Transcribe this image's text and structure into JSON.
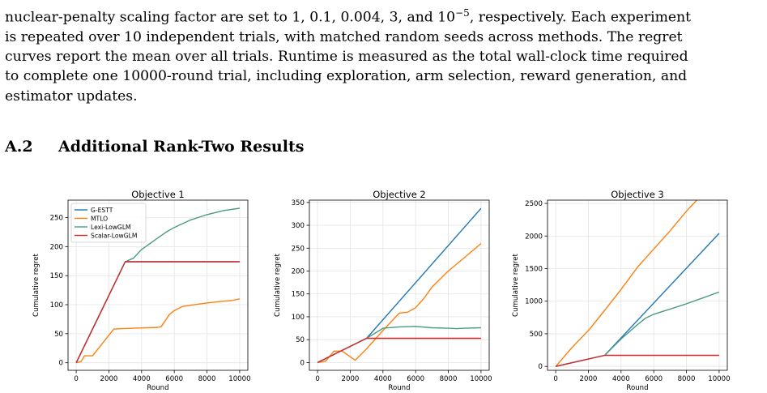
{
  "paragraph": {
    "lines": [
      "nuclear-penalty scaling factor are set to 1, 0.1, 0.004, 3, and 10",
      "is repeated over 10 independent trials, with matched random seeds across methods.  The regret",
      "curves report the mean over all trials. Runtime is measured as the total wall-clock time required",
      "to complete one 10000-round trial, including exploration, arm selection, reward generation, and",
      "estimator updates."
    ],
    "line1_superscript": "−5",
    "line1_suffix": ", respectively. Each experiment"
  },
  "section": {
    "number": "A.2",
    "title": "Additional Rank-Two Results"
  },
  "colors": {
    "G-ESTT": "#1f77b4",
    "MTLO": "#ff7f0e",
    "Lexi-LowGLM": "#4a9a86",
    "Scalar-LowGLM": "#d62728"
  },
  "chart_data": [
    {
      "type": "line",
      "title": "Objective 1",
      "xlabel": "Round",
      "ylabel": "Cumulative regret",
      "xlim": [
        -500,
        10500
      ],
      "ylim": [
        -13,
        280
      ],
      "xticks": [
        0,
        2000,
        4000,
        6000,
        8000,
        10000
      ],
      "yticks": [
        0,
        50,
        100,
        150,
        200,
        250
      ],
      "grid": true,
      "legend": "top-left",
      "series": [
        {
          "name": "G-ESTT",
          "x": [
            0,
            3000,
            10000
          ],
          "y": [
            0,
            174,
            174
          ]
        },
        {
          "name": "MTLO",
          "x": [
            0,
            300,
            500,
            1000,
            2300,
            3000,
            4000,
            5000,
            5200,
            5700,
            6000,
            6500,
            7000,
            8000,
            9000,
            9500,
            10000
          ],
          "y": [
            0,
            2,
            12,
            12,
            58,
            59,
            60,
            61,
            62,
            83,
            90,
            97,
            99,
            103,
            106,
            107,
            110
          ]
        },
        {
          "name": "Lexi-LowGLM",
          "x": [
            0,
            3000,
            3500,
            4000,
            5000,
            5500,
            6000,
            7000,
            8000,
            9000,
            10000
          ],
          "y": [
            0,
            174,
            180,
            195,
            215,
            225,
            233,
            246,
            255,
            262,
            266
          ]
        },
        {
          "name": "Scalar-LowGLM",
          "x": [
            0,
            3000,
            10000
          ],
          "y": [
            0,
            174,
            174
          ]
        }
      ]
    },
    {
      "type": "line",
      "title": "Objective 2",
      "xlabel": "Round",
      "ylabel": "Cumulative regret",
      "xlim": [
        -500,
        10500
      ],
      "ylim": [
        -17,
        355
      ],
      "xticks": [
        0,
        2000,
        4000,
        6000,
        8000,
        10000
      ],
      "yticks": [
        0,
        50,
        100,
        150,
        200,
        250,
        300,
        350
      ],
      "grid": true,
      "series": [
        {
          "name": "G-ESTT",
          "x": [
            0,
            3000,
            10000
          ],
          "y": [
            0,
            53,
            337
          ]
        },
        {
          "name": "MTLO",
          "x": [
            0,
            500,
            1000,
            1500,
            2300,
            3000,
            4000,
            5000,
            5500,
            6000,
            6500,
            7000,
            8000,
            9000,
            10000
          ],
          "y": [
            0,
            3,
            25,
            25,
            5,
            30,
            70,
            108,
            110,
            120,
            140,
            165,
            200,
            230,
            260
          ]
        },
        {
          "name": "Lexi-LowGLM",
          "x": [
            0,
            3000,
            4000,
            5000,
            6000,
            7000,
            8000,
            8500,
            9000,
            10000
          ],
          "y": [
            0,
            53,
            75,
            78,
            79,
            76,
            75,
            74,
            75,
            76
          ]
        },
        {
          "name": "Scalar-LowGLM",
          "x": [
            0,
            3000,
            10000
          ],
          "y": [
            0,
            53,
            53
          ]
        }
      ]
    },
    {
      "type": "line",
      "title": "Objective 3",
      "xlabel": "Round",
      "ylabel": "Cumulative regret",
      "xlim": [
        -500,
        10500
      ],
      "ylim": [
        -60,
        2550
      ],
      "xticks": [
        0,
        2000,
        4000,
        6000,
        8000,
        10000
      ],
      "yticks": [
        0,
        500,
        1000,
        1500,
        2000,
        2500
      ],
      "grid": true,
      "series": [
        {
          "name": "G-ESTT",
          "x": [
            0,
            3000,
            10000
          ],
          "y": [
            0,
            170,
            2040
          ]
        },
        {
          "name": "MTLO",
          "x": [
            0,
            1000,
            2000,
            3000,
            4000,
            5000,
            6000,
            7000,
            8000,
            9000,
            10000
          ],
          "y": [
            0,
            290,
            550,
            860,
            1180,
            1520,
            1800,
            2080,
            2380,
            2650,
            2550
          ]
        },
        {
          "name": "Lexi-LowGLM",
          "x": [
            0,
            3000,
            4000,
            5000,
            5500,
            6000,
            7000,
            8000,
            9000,
            10000
          ],
          "y": [
            0,
            170,
            420,
            640,
            740,
            800,
            880,
            960,
            1050,
            1140
          ]
        },
        {
          "name": "Scalar-LowGLM",
          "x": [
            0,
            3000,
            10000
          ],
          "y": [
            0,
            170,
            170
          ]
        }
      ]
    }
  ]
}
